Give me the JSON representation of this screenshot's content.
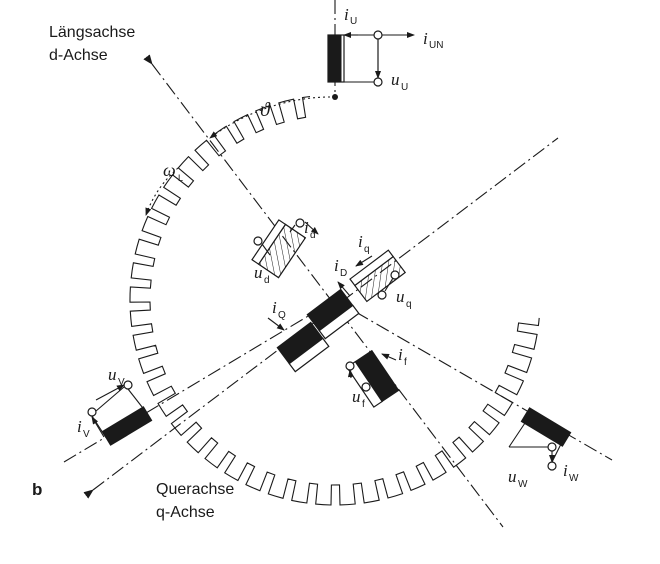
{
  "figure": {
    "panel_label": "b",
    "d_axis": {
      "line1": "Längsachse",
      "line2": "d-Achse"
    },
    "q_axis": {
      "line1": "Querachse",
      "line2": "q-Achse"
    },
    "angle": "ϑ",
    "omega": {
      "main": "ω",
      "sub": "L"
    },
    "U": {
      "current": "i",
      "current_sub": "U",
      "neutral": "i",
      "neutral_sub": "UN",
      "voltage": "u",
      "voltage_sub": "U"
    },
    "V": {
      "current": "i",
      "current_sub": "V",
      "voltage": "u",
      "voltage_sub": "V"
    },
    "W": {
      "current": "i",
      "current_sub": "W",
      "voltage": "u",
      "voltage_sub": "W"
    },
    "d_winding": {
      "current": "i",
      "current_sub": "d",
      "voltage": "u",
      "voltage_sub": "d"
    },
    "q_winding": {
      "current": "i",
      "current_sub": "q",
      "voltage": "u",
      "voltage_sub": "q"
    },
    "D_damper": {
      "current": "i",
      "current_sub": "D"
    },
    "Q_damper": {
      "current": "i",
      "current_sub": "Q"
    },
    "f_winding": {
      "current": "i",
      "current_sub": "f",
      "voltage": "u",
      "voltage_sub": "f"
    }
  }
}
